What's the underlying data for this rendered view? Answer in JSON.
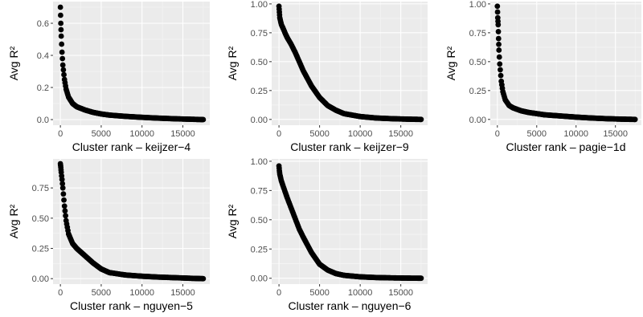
{
  "colors": {
    "panel_background": "#EBEBEB",
    "grid_major": "#FFFFFF",
    "grid_minor": "#F5F5F5",
    "points": "#000000",
    "tick_text": "#4D4D4D",
    "axis_title": "#000000"
  },
  "chart_data": [
    {
      "type": "scatter",
      "id": "keijzer-4",
      "title": "",
      "xlabel": "Cluster rank – keijzer−4",
      "ylabel": "Avg R²",
      "xlim": [
        -900,
        18300
      ],
      "ylim": [
        -0.035,
        0.735
      ],
      "xticks": [
        0,
        5000,
        10000,
        15000
      ],
      "xtick_labels": [
        "0",
        "5000",
        "10000",
        "15000"
      ],
      "yticks": [
        0.0,
        0.2,
        0.4,
        0.6
      ],
      "ytick_labels": [
        "0.0",
        "0.2",
        "0.4",
        "0.6"
      ],
      "grid": true,
      "x": [
        0,
        50,
        100,
        200,
        300,
        500,
        700,
        1000,
        1500,
        2000,
        3000,
        4000,
        5000,
        6000,
        8000,
        10000,
        12000,
        14000,
        16000,
        17500
      ],
      "y": [
        0.7,
        0.6,
        0.52,
        0.42,
        0.34,
        0.25,
        0.19,
        0.14,
        0.1,
        0.08,
        0.06,
        0.045,
        0.035,
        0.028,
        0.02,
        0.014,
        0.009,
        0.005,
        0.002,
        0.0
      ]
    },
    {
      "type": "scatter",
      "id": "keijzer-9",
      "title": "",
      "xlabel": "Cluster rank – keijzer−9",
      "ylabel": "Avg R²",
      "xlim": [
        -900,
        18300
      ],
      "ylim": [
        -0.05,
        1.02
      ],
      "xticks": [
        0,
        5000,
        10000,
        15000
      ],
      "xtick_labels": [
        "0",
        "5000",
        "10000",
        "15000"
      ],
      "yticks": [
        0.0,
        0.25,
        0.5,
        0.75,
        1.0
      ],
      "ytick_labels": [
        "0.00",
        "0.25",
        "0.50",
        "0.75",
        "1.00"
      ],
      "grid": true,
      "x": [
        0,
        50,
        100,
        200,
        300,
        500,
        800,
        1000,
        1500,
        2000,
        2500,
        3000,
        4000,
        5000,
        6000,
        7000,
        8000,
        10000,
        12000,
        14000,
        16000,
        17500
      ],
      "y": [
        0.98,
        0.93,
        0.88,
        0.85,
        0.82,
        0.79,
        0.74,
        0.71,
        0.65,
        0.58,
        0.5,
        0.42,
        0.29,
        0.19,
        0.12,
        0.08,
        0.05,
        0.025,
        0.012,
        0.006,
        0.002,
        0.0
      ]
    },
    {
      "type": "scatter",
      "id": "pagie-1d",
      "title": "",
      "xlabel": "Cluster rank – pagie−1d",
      "ylabel": "Avg R²",
      "xlim": [
        -900,
        18300
      ],
      "ylim": [
        -0.05,
        1.02
      ],
      "xticks": [
        0,
        5000,
        10000,
        15000
      ],
      "xtick_labels": [
        "0",
        "5000",
        "10000",
        "15000"
      ],
      "yticks": [
        0.0,
        0.25,
        0.5,
        0.75,
        1.0
      ],
      "ytick_labels": [
        "0.00",
        "0.25",
        "0.50",
        "0.75",
        "1.00"
      ],
      "grid": true,
      "x": [
        0,
        50,
        100,
        150,
        200,
        300,
        500,
        700,
        1000,
        1500,
        2000,
        3000,
        4000,
        5000,
        6000,
        8000,
        10000,
        12000,
        14000,
        16000,
        17500
      ],
      "y": [
        0.98,
        0.88,
        0.82,
        0.7,
        0.6,
        0.48,
        0.33,
        0.24,
        0.17,
        0.12,
        0.1,
        0.075,
        0.06,
        0.05,
        0.04,
        0.03,
        0.02,
        0.012,
        0.006,
        0.002,
        0.0
      ]
    },
    {
      "type": "scatter",
      "id": "nguyen-5",
      "title": "",
      "xlabel": "Cluster rank – nguyen−5",
      "ylabel": "Avg R²",
      "xlim": [
        -900,
        18300
      ],
      "ylim": [
        -0.045,
        0.99
      ],
      "xticks": [
        0,
        5000,
        10000,
        15000
      ],
      "xtick_labels": [
        "0",
        "5000",
        "10000",
        "15000"
      ],
      "yticks": [
        0.0,
        0.25,
        0.5,
        0.75
      ],
      "ytick_labels": [
        "0.00",
        "0.25",
        "0.50",
        "0.75"
      ],
      "grid": true,
      "x": [
        0,
        50,
        100,
        200,
        300,
        500,
        700,
        1000,
        1500,
        2000,
        2500,
        3000,
        4000,
        5000,
        6000,
        8000,
        10000,
        12000,
        14000,
        16000,
        17500
      ],
      "y": [
        0.95,
        0.92,
        0.88,
        0.82,
        0.75,
        0.6,
        0.48,
        0.37,
        0.29,
        0.25,
        0.22,
        0.19,
        0.13,
        0.08,
        0.05,
        0.03,
        0.02,
        0.013,
        0.008,
        0.003,
        0.0
      ]
    },
    {
      "type": "scatter",
      "id": "nguyen-6",
      "title": "",
      "xlabel": "Cluster rank – nguyen−6",
      "ylabel": "Avg R²",
      "xlim": [
        -900,
        18300
      ],
      "ylim": [
        -0.05,
        1.02
      ],
      "xticks": [
        0,
        5000,
        10000,
        15000
      ],
      "xtick_labels": [
        "0",
        "5000",
        "10000",
        "15000"
      ],
      "yticks": [
        0.0,
        0.25,
        0.5,
        0.75,
        1.0
      ],
      "ytick_labels": [
        "0.00",
        "0.25",
        "0.50",
        "0.75",
        "1.00"
      ],
      "grid": true,
      "x": [
        0,
        50,
        100,
        200,
        300,
        500,
        800,
        1000,
        1500,
        2000,
        2500,
        3000,
        4000,
        5000,
        6000,
        7000,
        8000,
        10000,
        12000,
        14000,
        16000,
        17500
      ],
      "y": [
        0.96,
        0.92,
        0.89,
        0.86,
        0.83,
        0.79,
        0.73,
        0.69,
        0.6,
        0.51,
        0.42,
        0.35,
        0.22,
        0.12,
        0.07,
        0.04,
        0.025,
        0.012,
        0.006,
        0.003,
        0.001,
        0.0
      ]
    }
  ]
}
